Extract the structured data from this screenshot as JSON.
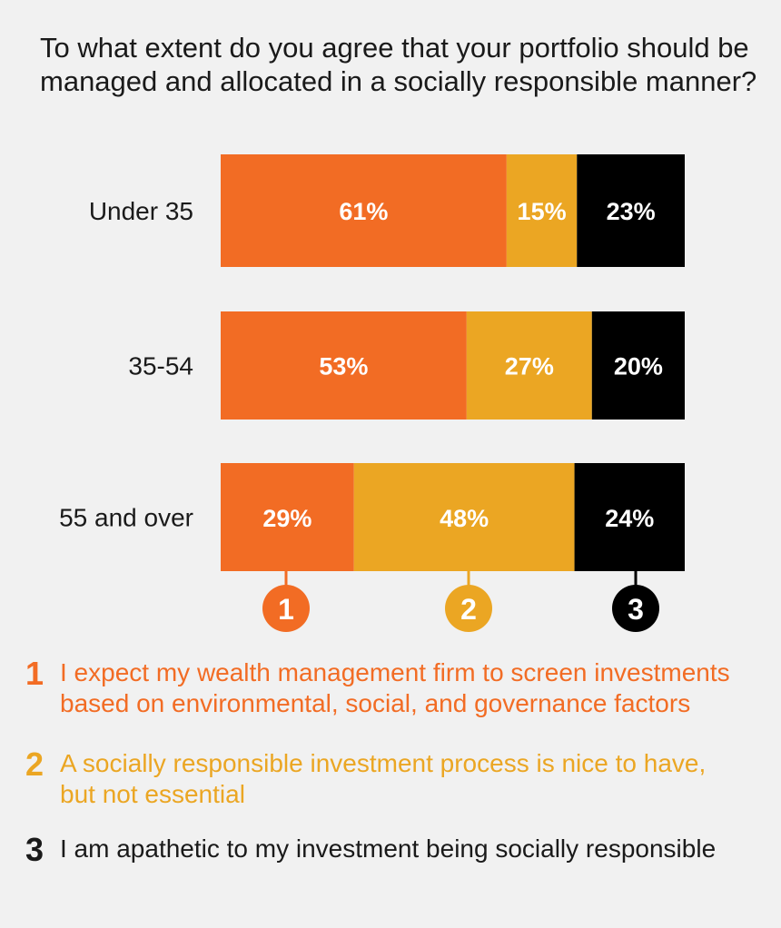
{
  "colors": {
    "c1": "#f26c24",
    "c2": "#eba623",
    "c3": "#000000",
    "text": "#1a1a1a",
    "background": "#f1f1f1"
  },
  "chart_data": {
    "type": "bar",
    "orientation": "horizontal",
    "stacked": true,
    "title": "To what extent do you agree that your portfolio should be managed and allocated in a socially responsible manner?",
    "categories": [
      "Under 35",
      "35-54",
      "55 and over"
    ],
    "series": [
      {
        "key": "1",
        "values": [
          61,
          53,
          29
        ],
        "labels": [
          "61%",
          "53%",
          "29%"
        ],
        "color": "#f26c24"
      },
      {
        "key": "2",
        "values": [
          15,
          27,
          48
        ],
        "labels": [
          "15%",
          "27%",
          "48%"
        ],
        "color": "#eba623"
      },
      {
        "key": "3",
        "values": [
          23,
          20,
          24
        ],
        "labels": [
          "23%",
          "20%",
          "24%"
        ],
        "color": "#000000"
      }
    ],
    "legend": [
      {
        "num": "1",
        "text": "I expect my wealth management firm to screen investments based on environmental, social, and governance factors",
        "color": "#f26c24"
      },
      {
        "num": "2",
        "text": "A socially responsible investment process is nice to have, but not essential",
        "color": "#eba623"
      },
      {
        "num": "3",
        "text": "I am apathetic to my investment being socially responsible",
        "color": "#1a1a1a"
      }
    ]
  }
}
